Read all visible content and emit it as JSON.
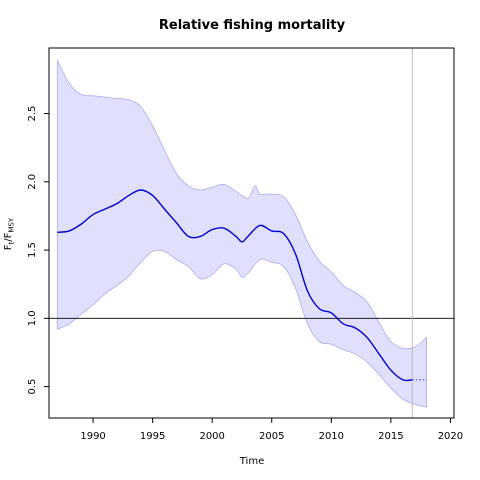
{
  "chart_data": {
    "type": "line",
    "title": "Relative fishing mortality",
    "xlabel": "Time",
    "ylabel": {
      "main": "F",
      "sub1": "t",
      "sep": "/F",
      "sub2": "MSY"
    },
    "xlim": [
      1986.3,
      2020.3
    ],
    "ylim": [
      0.27,
      2.98
    ],
    "x_ticks": [
      1990,
      1995,
      2000,
      2005,
      2010,
      2015,
      2020
    ],
    "y_ticks": [
      0.5,
      1.0,
      1.5,
      2.0,
      2.5
    ],
    "y_tick_labels": [
      "0.5",
      "1.0",
      "1.5",
      "2.0",
      "2.5"
    ],
    "reference_line_y": 1.0,
    "vertical_line_x": 2016.8,
    "estimate": {
      "x": [
        1987,
        1988,
        1989,
        1990,
        1991,
        1992,
        1993,
        1994,
        1995,
        1996,
        1997,
        1998,
        1999,
        2000,
        2001,
        2002,
        2002.5,
        2003,
        2004,
        2005,
        2006,
        2007,
        2008,
        2009,
        2010,
        2011,
        2012,
        2013,
        2014,
        2015,
        2016,
        2016.8
      ],
      "y": [
        1.63,
        1.64,
        1.69,
        1.76,
        1.8,
        1.84,
        1.9,
        1.94,
        1.9,
        1.8,
        1.7,
        1.6,
        1.6,
        1.65,
        1.66,
        1.6,
        1.56,
        1.6,
        1.68,
        1.64,
        1.62,
        1.47,
        1.2,
        1.07,
        1.04,
        0.96,
        0.93,
        0.86,
        0.74,
        0.62,
        0.55,
        0.55
      ]
    },
    "forecast": {
      "x": [
        2016.8,
        2018
      ],
      "y": [
        0.55,
        0.55
      ]
    },
    "ci_upper": {
      "x": [
        1987,
        1988,
        1989,
        1990,
        1991,
        1992,
        1993,
        1994,
        1995,
        1996,
        1997,
        1998,
        1999,
        2000,
        2001,
        2002,
        2003,
        2003.6,
        2004,
        2005,
        2006,
        2007,
        2008,
        2009,
        2010,
        2011,
        2012,
        2013,
        2014,
        2015,
        2016,
        2017,
        2018
      ],
      "y": [
        2.89,
        2.72,
        2.64,
        2.63,
        2.62,
        2.61,
        2.6,
        2.55,
        2.41,
        2.23,
        2.06,
        1.97,
        1.94,
        1.96,
        1.98,
        1.93,
        1.88,
        1.97,
        1.91,
        1.91,
        1.89,
        1.76,
        1.56,
        1.42,
        1.34,
        1.24,
        1.19,
        1.12,
        0.97,
        0.83,
        0.78,
        0.79,
        0.86
      ]
    },
    "ci_lower": {
      "x": [
        1987,
        1988,
        1989,
        1990,
        1991,
        1992,
        1993,
        1994,
        1995,
        1996,
        1997,
        1998,
        1999,
        2000,
        2001,
        2002,
        2002.5,
        2003,
        2004,
        2005,
        2006,
        2007,
        2008,
        2009,
        2010,
        2011,
        2012,
        2013,
        2014,
        2015,
        2016,
        2017,
        2018
      ],
      "y": [
        0.92,
        0.96,
        1.03,
        1.1,
        1.18,
        1.24,
        1.31,
        1.41,
        1.49,
        1.49,
        1.43,
        1.38,
        1.29,
        1.32,
        1.4,
        1.36,
        1.3,
        1.33,
        1.43,
        1.41,
        1.38,
        1.22,
        0.96,
        0.83,
        0.81,
        0.77,
        0.74,
        0.68,
        0.59,
        0.49,
        0.41,
        0.37,
        0.35
      ]
    },
    "colors": {
      "estimate": "#0000cc",
      "forecast": "#5555ee",
      "ci_fill": "#e0e0fc",
      "ci_stroke": "#aaaaf0",
      "reference_line": "#000000",
      "vertical_line": "#bbbbbb"
    },
    "grid": false,
    "legend": "none"
  }
}
